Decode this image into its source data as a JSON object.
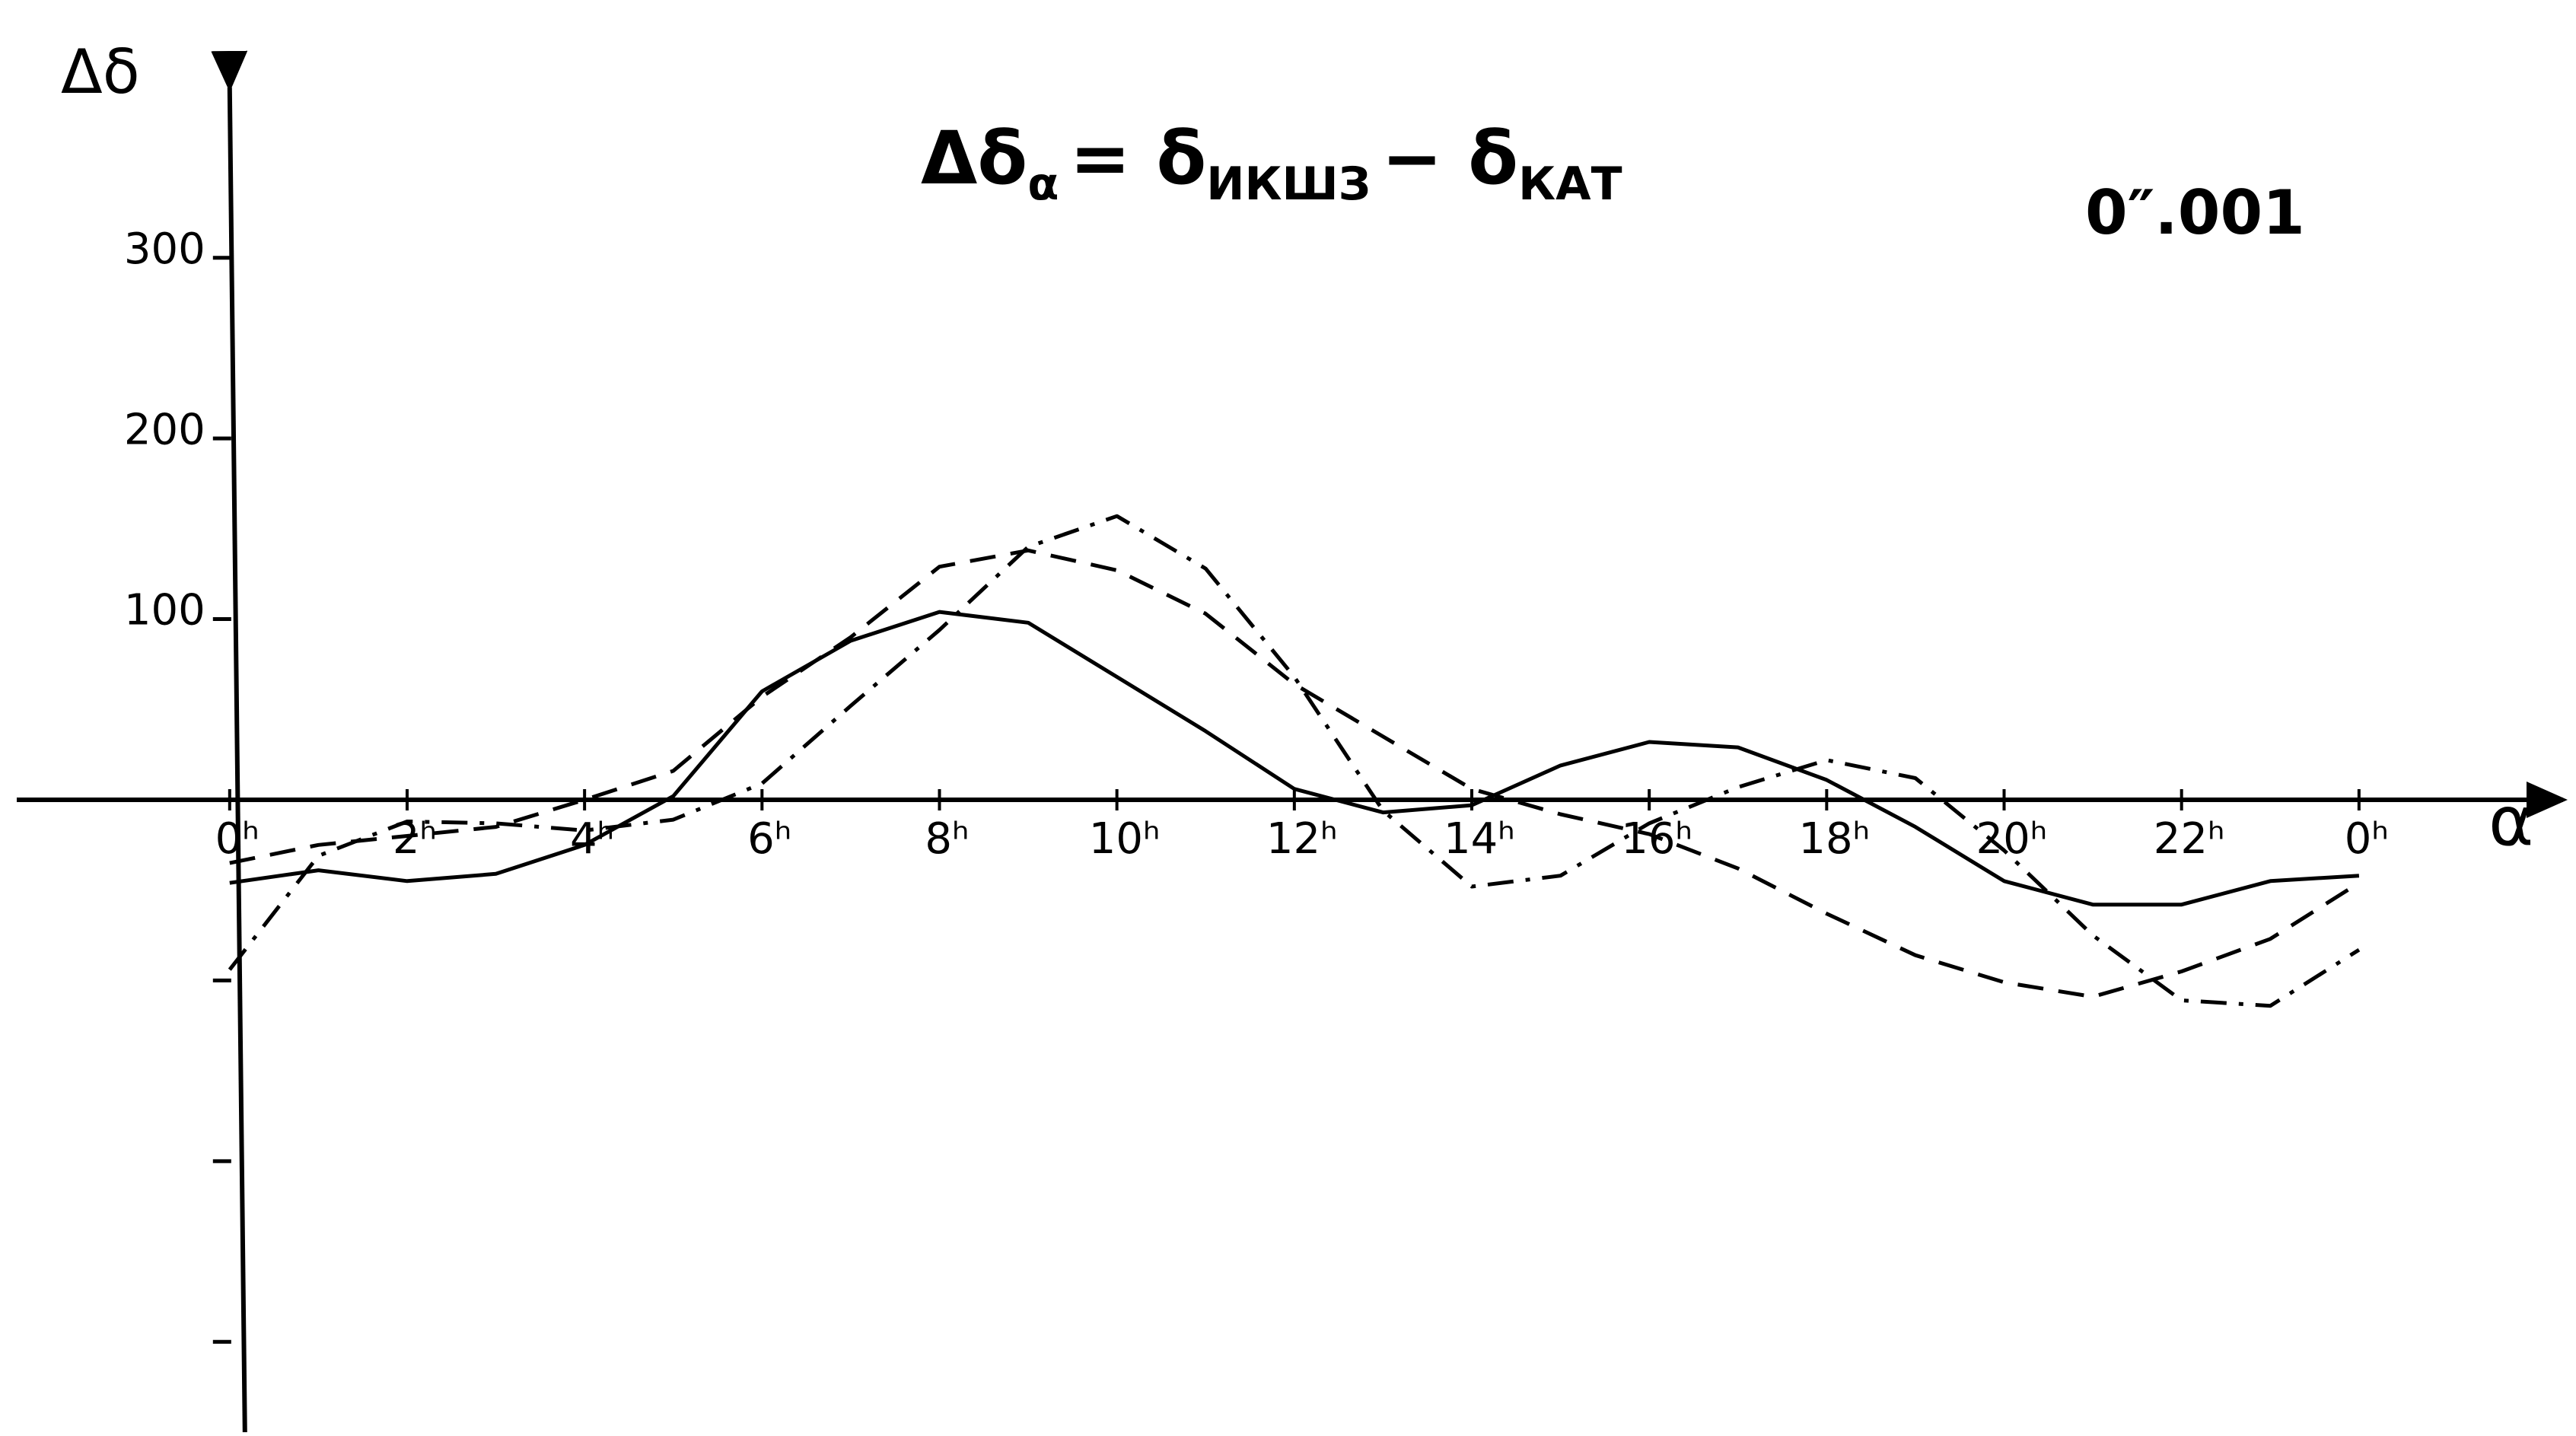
{
  "chart_data": {
    "type": "line",
    "title_parts": [
      "Δδ",
      "α",
      "= δ",
      "ИКШЗ",
      "− δ",
      "КАТ"
    ],
    "unit": "0″.001",
    "y_label": "Δδ",
    "x_label": "α",
    "x": [
      0,
      1,
      2,
      3,
      4,
      5,
      6,
      7,
      8,
      9,
      10,
      11,
      12,
      13,
      14,
      15,
      16,
      17,
      18,
      19,
      20,
      21,
      22,
      23,
      24
    ],
    "xlim": [
      -2.4,
      26.3
    ],
    "xticks": [
      {
        "value": 0,
        "label": "0ʰ"
      },
      {
        "value": 2,
        "label": "2ʰ"
      },
      {
        "value": 4,
        "label": "4ʰ"
      },
      {
        "value": 6,
        "label": "6ʰ"
      },
      {
        "value": 8,
        "label": "8ʰ"
      },
      {
        "value": 10,
        "label": "10ʰ"
      },
      {
        "value": 12,
        "label": "12ʰ"
      },
      {
        "value": 14,
        "label": "14ʰ"
      },
      {
        "value": 16,
        "label": "16ʰ"
      },
      {
        "value": 18,
        "label": "18ʰ"
      },
      {
        "value": 20,
        "label": "20ʰ"
      },
      {
        "value": 22,
        "label": "22ʰ"
      },
      {
        "value": 24,
        "label": "0ʰ"
      }
    ],
    "ylim": [
      -350,
      390
    ],
    "yticks": [
      {
        "value": -300,
        "label": null
      },
      {
        "value": -200,
        "label": null
      },
      {
        "value": -100,
        "label": null
      },
      100,
      200,
      300
    ],
    "grid": false,
    "series": [
      {
        "color": "#000000",
        "dash": "solid",
        "values": [
          -46,
          -39,
          -45,
          -41,
          -25,
          2,
          60,
          88,
          104,
          98,
          68,
          38,
          6,
          -7,
          -3,
          19,
          32,
          29,
          11,
          -15,
          -45,
          -58,
          -58,
          -45,
          -42
        ]
      },
      {
        "color": "#000000",
        "dash": "dashed",
        "values": [
          -35,
          -25,
          -20,
          -15,
          0,
          16,
          57,
          90,
          129,
          138,
          127,
          103,
          64,
          35,
          6,
          -8,
          -19,
          -38,
          -63,
          -86,
          -101,
          -109,
          -95,
          -77,
          -46
        ]
      },
      {
        "color": "#000000",
        "dash": "dashdot",
        "values": [
          -94,
          -31,
          -12,
          -13,
          -17,
          -11,
          9,
          52,
          94,
          140,
          157,
          128,
          68,
          -6,
          -48,
          -42,
          -13,
          7,
          22,
          12,
          -28,
          -75,
          -111,
          -114,
          -83
        ]
      }
    ]
  }
}
